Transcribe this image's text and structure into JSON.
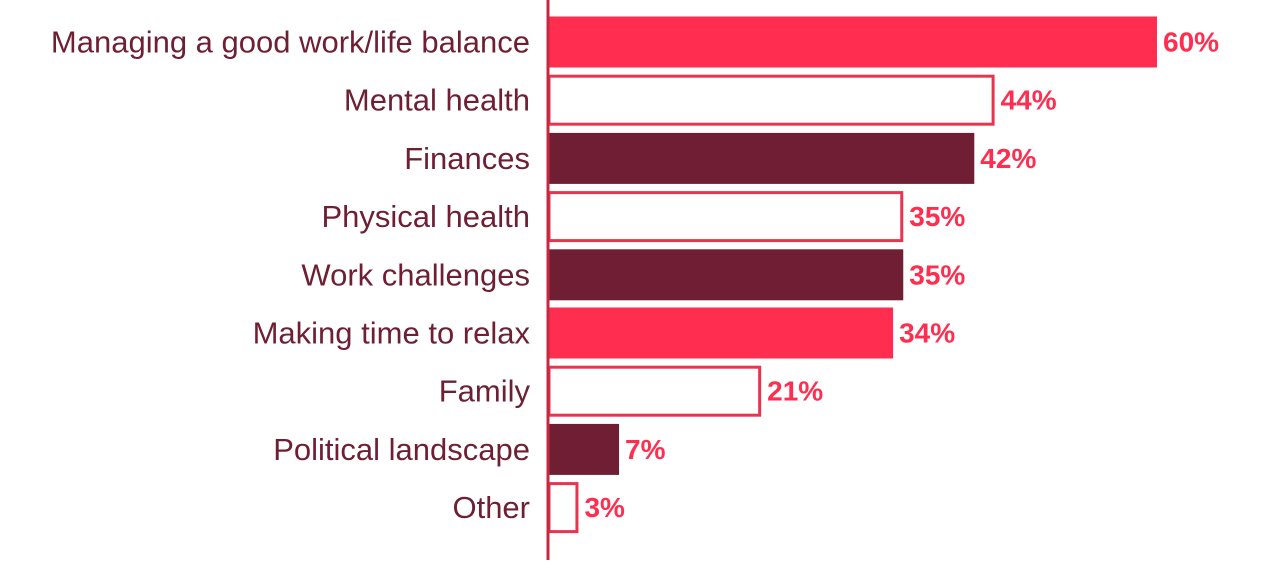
{
  "chart_data": {
    "type": "bar",
    "orientation": "horizontal",
    "categories": [
      "Managing a good work/life balance",
      "Mental health",
      "Finances",
      "Physical health",
      "Work challenges",
      "Making time to relax",
      "Family",
      "Political landscape",
      "Other"
    ],
    "values": [
      60,
      44,
      42,
      35,
      35,
      34,
      21,
      7,
      3
    ],
    "value_labels": [
      "60%",
      "44%",
      "42%",
      "35%",
      "35%",
      "34%",
      "21%",
      "7%",
      "3%"
    ],
    "bar_styles": [
      "filled-red",
      "outline",
      "filled-maroon",
      "outline",
      "filled-maroon",
      "filled-red",
      "outline",
      "filled-maroon",
      "outline"
    ],
    "title": "",
    "xlabel": "",
    "ylabel": "",
    "xlim": [
      0,
      60
    ],
    "grid": false,
    "legend": "none"
  },
  "colors": {
    "red": "#ff2d4f",
    "maroon": "#701e33",
    "outline": "#e8354f",
    "axis": "#c8283f",
    "label_text": "#6e1f33",
    "value_text": "#ff2d4f",
    "background": "#ffffff"
  }
}
